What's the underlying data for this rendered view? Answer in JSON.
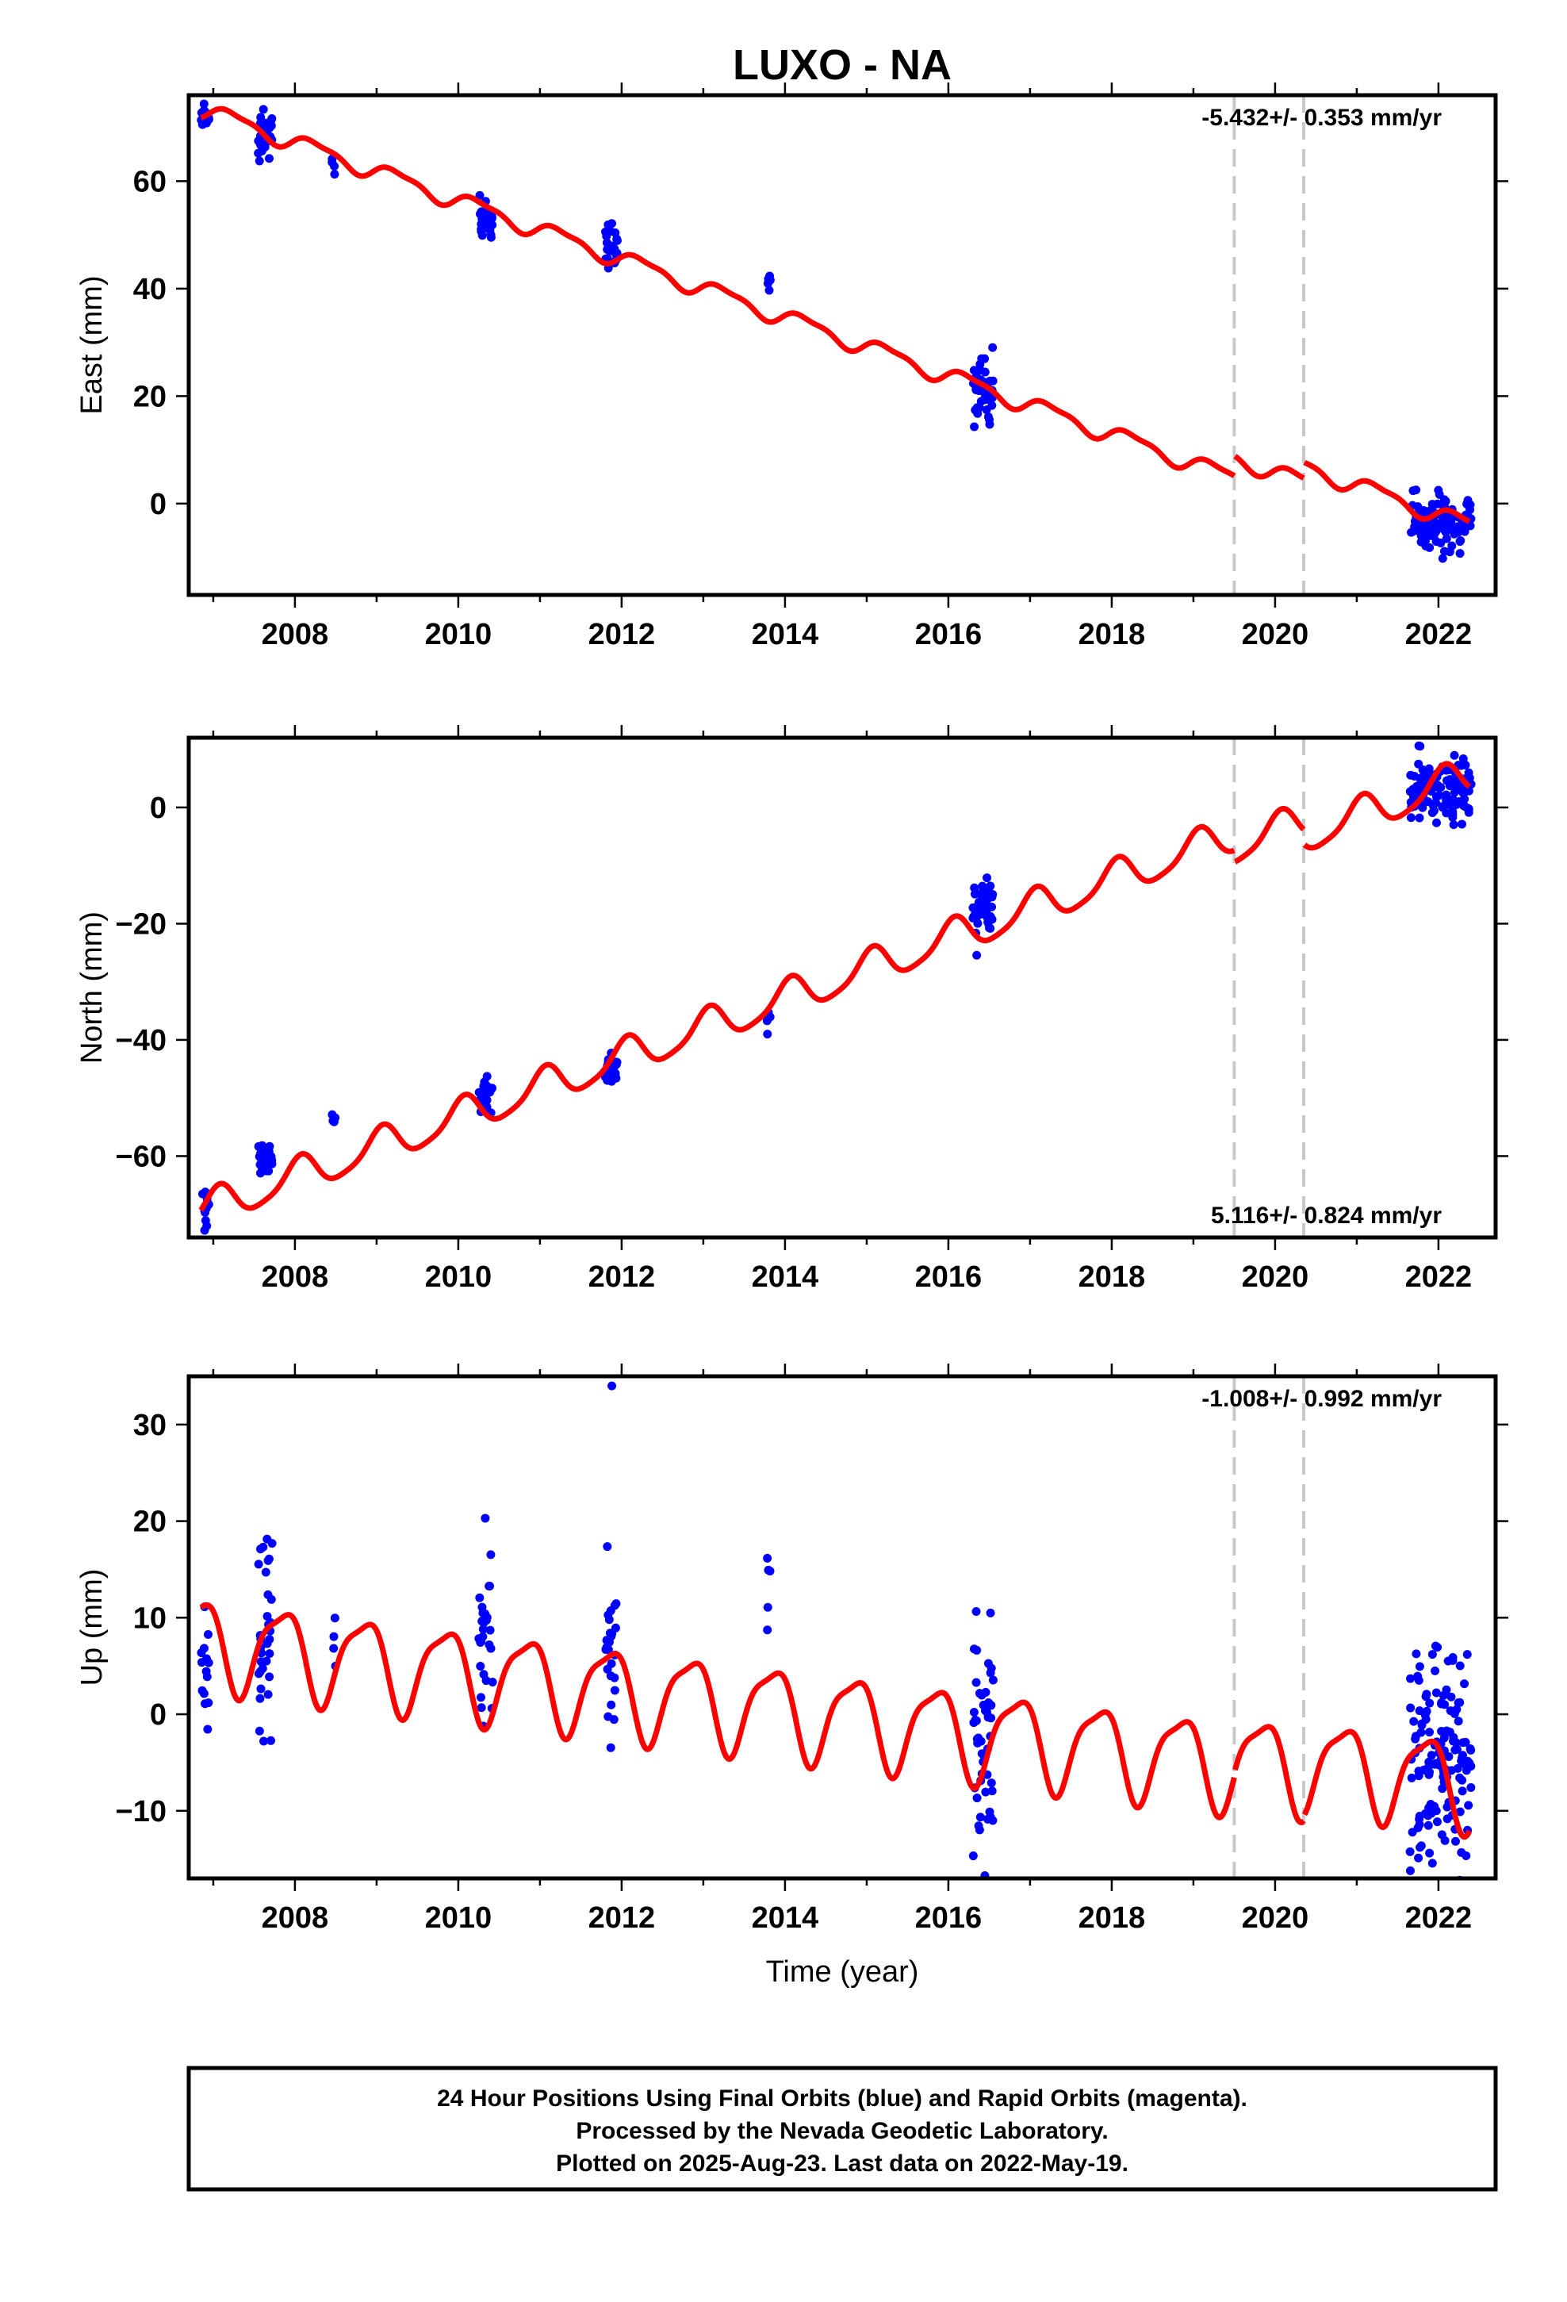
{
  "chart_data": [
    {
      "type": "scatter",
      "panel": "east",
      "title": "LUXO - NA",
      "xlabel": "",
      "ylabel": "East (mm)",
      "rate": "-5.432+/- 0.353 mm/yr",
      "xlim": [
        2006.7,
        2022.7
      ],
      "ylim": [
        -17,
        76
      ],
      "x_ticks": [
        2008,
        2010,
        2012,
        2014,
        2016,
        2018,
        2020,
        2022
      ],
      "x_tick_labels": [
        "2008",
        "2010",
        "2012",
        "2014",
        "2016",
        "2018",
        "2020",
        "2022"
      ],
      "y_ticks": [
        0,
        20,
        40,
        60
      ],
      "y_tick_labels": [
        "0",
        "20",
        "40",
        "60"
      ],
      "breaks": [
        2019.5,
        2020.35
      ],
      "model": {
        "intercept": 73.5,
        "slope": -5.432,
        "annual_amp": 1.5,
        "semiannual_amp": 0.5,
        "phase_annual": 0.0,
        "phase_semiannual": 0.8,
        "offsets": [
          {
            "at": 2019.5,
            "delta": 3.8
          },
          {
            "at": 2020.35,
            "delta": 3.0
          }
        ]
      },
      "observation_clusters": [
        {
          "start": 2006.85,
          "end": 2006.95,
          "center": 73,
          "spread": 2.5,
          "count": 14
        },
        {
          "start": 2007.55,
          "end": 2007.72,
          "center": 69,
          "spread": 3.5,
          "count": 30
        },
        {
          "start": 2008.45,
          "end": 2008.5,
          "center": 63,
          "spread": 1.5,
          "count": 4
        },
        {
          "start": 2010.25,
          "end": 2010.42,
          "center": 52.5,
          "spread": 3.5,
          "count": 30
        },
        {
          "start": 2011.8,
          "end": 2011.95,
          "center": 48,
          "spread": 4,
          "count": 24
        },
        {
          "start": 2013.78,
          "end": 2013.82,
          "center": 40,
          "spread": 1.5,
          "count": 5
        },
        {
          "start": 2016.3,
          "end": 2016.55,
          "center": 21,
          "spread": 5,
          "count": 45
        },
        {
          "start": 2021.65,
          "end": 2022.4,
          "center": -4,
          "spread": 4,
          "count": 120
        }
      ]
    },
    {
      "type": "scatter",
      "panel": "north",
      "xlabel": "",
      "ylabel": "North (mm)",
      "rate": "5.116+/- 0.824 mm/yr",
      "xlim": [
        2006.7,
        2022.7
      ],
      "ylim": [
        -74,
        12
      ],
      "x_ticks": [
        2008,
        2010,
        2012,
        2014,
        2016,
        2018,
        2020,
        2022
      ],
      "x_tick_labels": [
        "2008",
        "2010",
        "2012",
        "2014",
        "2016",
        "2018",
        "2020",
        "2022"
      ],
      "y_ticks": [
        -60,
        -40,
        -20,
        0
      ],
      "y_tick_labels": [
        "−60",
        "−40",
        "−20",
        "0"
      ],
      "breaks": [
        2019.5,
        2020.35
      ],
      "model": {
        "intercept": -69.5,
        "slope": 5.116,
        "annual_amp": 3.0,
        "semiannual_amp": 0.6,
        "phase_annual": 1.2,
        "phase_semiannual": 0.3,
        "offsets": [
          {
            "at": 2019.5,
            "delta": -2.0
          },
          {
            "at": 2020.35,
            "delta": -2.5
          }
        ]
      },
      "observation_clusters": [
        {
          "start": 2006.85,
          "end": 2006.95,
          "center": -69,
          "spread": 3,
          "count": 12
        },
        {
          "start": 2007.55,
          "end": 2007.72,
          "center": -60,
          "spread": 2.5,
          "count": 28
        },
        {
          "start": 2008.45,
          "end": 2008.5,
          "center": -54,
          "spread": 1,
          "count": 4
        },
        {
          "start": 2010.25,
          "end": 2010.42,
          "center": -49,
          "spread": 3,
          "count": 28
        },
        {
          "start": 2011.8,
          "end": 2011.95,
          "center": -45,
          "spread": 2.5,
          "count": 22
        },
        {
          "start": 2013.78,
          "end": 2013.82,
          "center": -36,
          "spread": 1.5,
          "count": 5
        },
        {
          "start": 2016.3,
          "end": 2016.55,
          "center": -17,
          "spread": 4,
          "count": 45
        },
        {
          "start": 2021.65,
          "end": 2022.4,
          "center": 3,
          "spread": 4,
          "count": 120
        }
      ]
    },
    {
      "type": "scatter",
      "panel": "up",
      "xlabel": "Time (year)",
      "ylabel": "Up (mm)",
      "rate": "-1.008+/- 0.992 mm/yr",
      "xlim": [
        2006.7,
        2022.7
      ],
      "ylim": [
        -17,
        35
      ],
      "x_ticks": [
        2008,
        2010,
        2012,
        2014,
        2016,
        2018,
        2020,
        2022
      ],
      "x_tick_labels": [
        "2008",
        "2010",
        "2012",
        "2014",
        "2016",
        "2018",
        "2020",
        "2022"
      ],
      "y_ticks": [
        -10,
        0,
        10,
        20,
        30
      ],
      "y_tick_labels": [
        "−10",
        "0",
        "10",
        "20",
        "30"
      ],
      "breaks": [
        2019.5,
        2020.35
      ],
      "model": {
        "intercept": 7.5,
        "slope": -1.008,
        "annual_amp": 4.5,
        "semiannual_amp": 1.2,
        "phase_annual": 2.6,
        "phase_semiannual": 1.0,
        "offsets": [
          {
            "at": 2019.5,
            "delta": 0.5
          },
          {
            "at": 2020.35,
            "delta": 0.5
          }
        ]
      },
      "observation_clusters": [
        {
          "start": 2006.85,
          "end": 2006.95,
          "center": 5,
          "spread": 4,
          "count": 14
        },
        {
          "start": 2007.55,
          "end": 2007.72,
          "center": 7,
          "spread": 8,
          "count": 32
        },
        {
          "start": 2008.45,
          "end": 2008.5,
          "center": 8,
          "spread": 3,
          "count": 4
        },
        {
          "start": 2010.25,
          "end": 2010.42,
          "center": 6,
          "spread": 7,
          "count": 28
        },
        {
          "start": 2011.8,
          "end": 2011.95,
          "center": 8,
          "spread": 8,
          "count": 26
        },
        {
          "start": 2013.78,
          "end": 2013.82,
          "center": 13,
          "spread": 4,
          "count": 5
        },
        {
          "start": 2016.3,
          "end": 2016.55,
          "center": -2,
          "spread": 11,
          "count": 50
        },
        {
          "start": 2021.65,
          "end": 2022.4,
          "center": -5,
          "spread": 10,
          "count": 140
        }
      ],
      "outliers": [
        {
          "x": 2011.88,
          "y": 34
        },
        {
          "x": 2010.33,
          "y": 20.3
        },
        {
          "x": 2007.72,
          "y": 17.7
        }
      ]
    }
  ],
  "footer": {
    "line1": "24 Hour Positions Using Final Orbits (blue) and Rapid Orbits (magenta).",
    "line2": "Processed by the Nevada Geodetic Laboratory.",
    "line3": "Plotted on 2025-Aug-23. Last data on 2022-May-19."
  },
  "colors": {
    "data": "#0000ff",
    "model": "#ff0000",
    "breaks": "#c8c8c8",
    "frame": "#000000"
  }
}
